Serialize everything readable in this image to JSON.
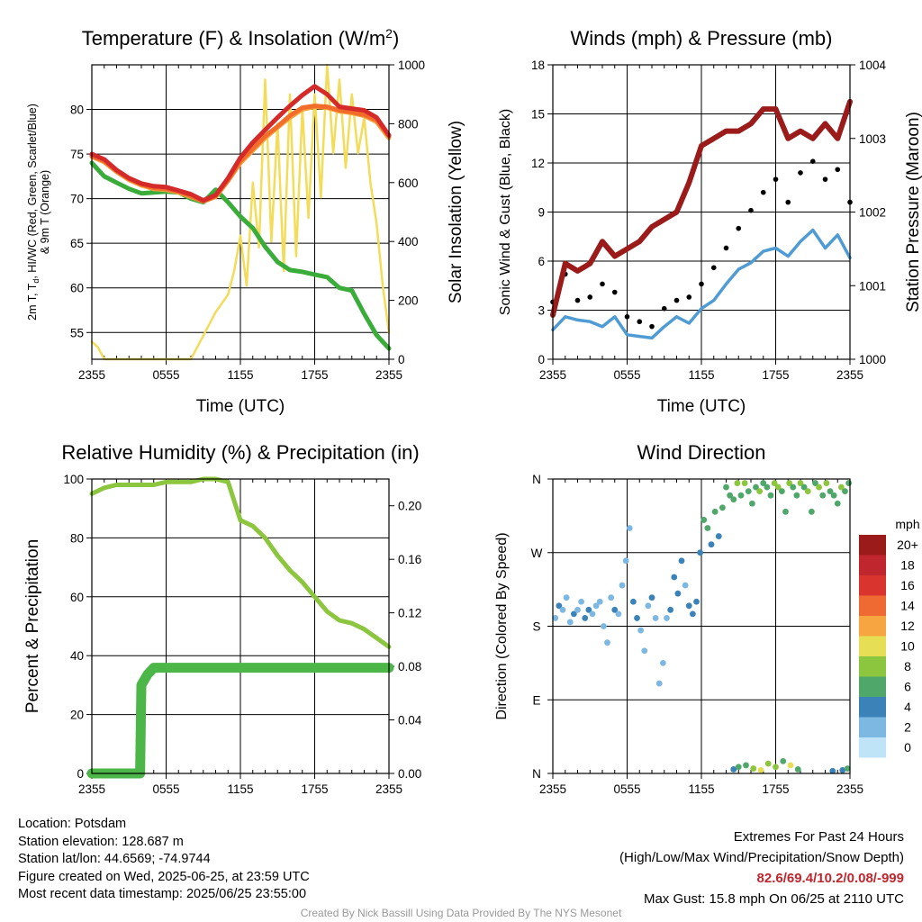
{
  "chart_data": [
    {
      "type": "line",
      "title": "Temperature (F) & Insolation (W/m²)",
      "xlabel": "Time (UTC)",
      "ylabel": "2m T, Td, HI/WC (Red, Green, Scarlet/Blue) & 9m T (Orange)",
      "y2label": "Solar Insolation (Yellow)",
      "xticks": [
        "2355",
        "0555",
        "1155",
        "1755",
        "2355"
      ],
      "ylim": [
        52,
        85
      ],
      "yticks": [
        55,
        60,
        65,
        70,
        75,
        80
      ],
      "y2lim": [
        0,
        1000
      ],
      "y2ticks": [
        0,
        200,
        400,
        600,
        800,
        1000
      ],
      "grid": true,
      "series": [
        {
          "name": "2m T",
          "color": "#d42a2a",
          "x": [
            0,
            1,
            2,
            3,
            4,
            5,
            6,
            7,
            8,
            9,
            10,
            11,
            12,
            13,
            14,
            15,
            16,
            17,
            18,
            19,
            20,
            21,
            22,
            23,
            24
          ],
          "values": [
            75,
            74.4,
            73.2,
            72.3,
            71.7,
            71.4,
            71.3,
            70.9,
            70.5,
            69.8,
            70.4,
            72.3,
            74.6,
            76.3,
            77.7,
            79.1,
            80.4,
            81.6,
            82.6,
            81.7,
            80.3,
            80.1,
            79.9,
            79.1,
            77.1
          ]
        },
        {
          "name": "2m Td",
          "color": "#3aac3a",
          "x": [
            0,
            1,
            2,
            3,
            4,
            5,
            6,
            7,
            8,
            9,
            10,
            11,
            12,
            13,
            14,
            15,
            16,
            17,
            18,
            19,
            20,
            21,
            22,
            23,
            24
          ],
          "values": [
            74,
            72.5,
            71.8,
            71.1,
            70.6,
            70.7,
            70.8,
            70.7,
            70.0,
            69.6,
            71.0,
            69.6,
            68.0,
            66.7,
            64.6,
            62.9,
            62.0,
            61.8,
            61.5,
            61.2,
            60.0,
            59.7,
            57.1,
            54.7,
            53.2
          ]
        },
        {
          "name": "HI/WC",
          "color": "#f26c2a",
          "x": [
            0,
            1,
            2,
            3,
            4,
            5,
            6,
            7,
            8,
            9,
            10,
            11,
            12,
            13,
            14,
            15,
            16,
            17,
            18,
            19,
            20,
            21,
            22,
            23,
            24
          ],
          "values": [
            74.8,
            74.2,
            73.1,
            72.2,
            71.6,
            71.2,
            71.1,
            70.8,
            70.3,
            69.7,
            70.3,
            72.1,
            74.2,
            75.6,
            77.0,
            78.1,
            79.3,
            80.2,
            80.4,
            80.3,
            79.9,
            79.7,
            79.4,
            78.8,
            77.0
          ]
        },
        {
          "name": "9m T",
          "color": "#f7a541",
          "x": [
            0,
            1,
            2,
            3,
            4,
            5,
            6,
            7,
            8,
            9,
            10,
            11,
            12,
            13,
            14,
            15,
            16,
            17,
            18,
            19,
            20,
            21,
            22,
            23,
            24
          ],
          "values": [
            74.7,
            74.1,
            73.0,
            72.1,
            71.5,
            71.1,
            71.0,
            70.7,
            70.2,
            69.7,
            70.2,
            72.0,
            74.0,
            75.4,
            76.8,
            78.0,
            79.1,
            80.0,
            80.3,
            80.2,
            79.8,
            79.6,
            79.3,
            78.6,
            76.8
          ]
        },
        {
          "name": "Solar Insolation",
          "color": "#f2dc5a",
          "axis": "y2",
          "x": [
            0,
            0.5,
            1,
            2,
            3,
            4,
            5,
            6,
            7,
            8,
            9,
            10,
            11,
            11.5,
            12,
            12.5,
            13,
            13.5,
            14,
            14.5,
            15,
            15.5,
            16,
            16.5,
            17,
            17.5,
            18,
            18.5,
            19,
            19.5,
            20,
            20.5,
            21,
            21.5,
            22,
            22.5,
            23,
            23.5,
            24
          ],
          "values": [
            60,
            40,
            0,
            0,
            0,
            0,
            0,
            0,
            0,
            0,
            80,
            160,
            220,
            300,
            420,
            250,
            600,
            380,
            950,
            400,
            800,
            300,
            900,
            350,
            850,
            480,
            900,
            550,
            1000,
            700,
            950,
            650,
            900,
            700,
            820,
            600,
            460,
            250,
            90
          ]
        }
      ]
    },
    {
      "type": "line",
      "title": "Winds (mph) & Pressure (mb)",
      "xlabel": "Time (UTC)",
      "ylabel": "Sonic Wind & Gust (Blue, Black)",
      "y2label": "Station Pressure (Maroon)",
      "xticks": [
        "2355",
        "0555",
        "1155",
        "1755",
        "2355"
      ],
      "ylim": [
        0,
        18
      ],
      "yticks": [
        0,
        3,
        6,
        9,
        12,
        15,
        18
      ],
      "y2lim": [
        1000,
        1004
      ],
      "y2ticks": [
        1000,
        1001,
        1002,
        1003,
        1004
      ],
      "grid": true,
      "series": [
        {
          "name": "Sonic Wind",
          "color": "#4f9bd4",
          "x": [
            0,
            1,
            2,
            3,
            4,
            5,
            6,
            7,
            8,
            9,
            10,
            11,
            12,
            13,
            14,
            15,
            16,
            17,
            18,
            19,
            20,
            21,
            22,
            23,
            24
          ],
          "values": [
            1.8,
            2.6,
            2.4,
            2.3,
            2.0,
            2.6,
            1.5,
            1.4,
            1.3,
            2.0,
            2.6,
            2.2,
            3.1,
            3.6,
            4.6,
            5.5,
            5.9,
            6.6,
            6.8,
            6.3,
            7.2,
            7.9,
            6.8,
            7.6,
            6.2
          ]
        },
        {
          "name": "Gust",
          "color": "#000000",
          "style": "points",
          "x": [
            0,
            1,
            2,
            3,
            4,
            5,
            6,
            7,
            8,
            9,
            10,
            11,
            12,
            13,
            14,
            15,
            16,
            17,
            18,
            19,
            20,
            21,
            22,
            23,
            24
          ],
          "values": [
            3.5,
            5.2,
            3.6,
            3.8,
            4.6,
            4.1,
            2.6,
            2.3,
            2.0,
            3.1,
            3.6,
            3.8,
            4.6,
            5.6,
            6.8,
            8.0,
            9.1,
            10.2,
            11.0,
            9.6,
            11.4,
            12.1,
            11.0,
            11.6,
            9.6
          ]
        },
        {
          "name": "Station Pressure",
          "color": "#9b1b1b",
          "axis": "y2",
          "x": [
            0,
            1,
            2,
            3,
            4,
            5,
            6,
            7,
            8,
            9,
            10,
            11,
            12,
            13,
            14,
            15,
            16,
            17,
            18,
            19,
            20,
            21,
            22,
            23,
            24
          ],
          "values": [
            1000.6,
            1001.3,
            1001.2,
            1001.3,
            1001.6,
            1001.4,
            1001.5,
            1001.6,
            1001.8,
            1001.9,
            1002.0,
            1002.4,
            1002.9,
            1003.0,
            1003.1,
            1003.1,
            1003.2,
            1003.4,
            1003.4,
            1003.0,
            1003.1,
            1003.0,
            1003.2,
            1003.0,
            1003.5
          ]
        }
      ]
    },
    {
      "type": "line",
      "title": "Relative Humidity (%) & Precipitation (in)",
      "xlabel": "",
      "ylabel": "Percent & Precipitation",
      "xticks": [
        "2355",
        "0555",
        "1155",
        "1755",
        "2355"
      ],
      "ylim": [
        0,
        100
      ],
      "yticks": [
        0,
        20,
        40,
        60,
        80,
        100
      ],
      "y2lim": [
        0,
        0.22
      ],
      "y2ticks": [
        0.0,
        0.04,
        0.08,
        0.12,
        0.16,
        0.2
      ],
      "grid": true,
      "series": [
        {
          "name": "Relative Humidity",
          "color": "#8cc63f",
          "x": [
            0,
            1,
            2,
            3,
            4,
            5,
            6,
            7,
            8,
            9,
            10,
            11,
            12,
            13,
            14,
            15,
            16,
            17,
            18,
            19,
            20,
            21,
            22,
            23,
            24
          ],
          "values": [
            95,
            97,
            98,
            98,
            98,
            98,
            99,
            99,
            99,
            100,
            100,
            99,
            86,
            84,
            80,
            74,
            69,
            65,
            60,
            55,
            52,
            51,
            49,
            46,
            43
          ]
        },
        {
          "name": "Precipitation",
          "color": "#4cb648",
          "axis": "y2",
          "x": [
            0,
            1,
            2,
            3,
            3.9,
            4.0,
            4.5,
            5,
            6,
            7,
            8,
            9,
            10,
            11,
            12,
            13,
            14,
            15,
            16,
            17,
            18,
            19,
            20,
            21,
            22,
            23,
            24
          ],
          "values": [
            0,
            0,
            0,
            0,
            0,
            0.066,
            0.074,
            0.079,
            0.079,
            0.079,
            0.079,
            0.079,
            0.079,
            0.079,
            0.079,
            0.079,
            0.079,
            0.079,
            0.079,
            0.079,
            0.079,
            0.079,
            0.079,
            0.079,
            0.079,
            0.079,
            0.079
          ]
        }
      ]
    },
    {
      "type": "scatter",
      "title": "Wind Direction",
      "xlabel": "",
      "ylabel": "Direction (Colored By Speed)",
      "xticks": [
        "2355",
        "0555",
        "1155",
        "1755",
        "2355"
      ],
      "yticks": [
        "N",
        "E",
        "S",
        "W",
        "N"
      ],
      "ylim": [
        0,
        360
      ],
      "grid": true,
      "colorbar": {
        "unit": "mph",
        "labels": [
          "20+",
          "18",
          "16",
          "14",
          "12",
          "10",
          "8",
          "6",
          "4",
          "2",
          "0"
        ],
        "colors": [
          "#9b1b1b",
          "#c0262d",
          "#d9352e",
          "#ef6a32",
          "#f7a541",
          "#e6de55",
          "#8cc63f",
          "#4fa86a",
          "#3b82b8",
          "#7cb8e2",
          "#bfe3f7"
        ]
      },
      "x": [
        0.2,
        0.5,
        0.8,
        1.1,
        1.4,
        1.7,
        2.0,
        2.3,
        2.6,
        2.9,
        3.2,
        3.5,
        3.8,
        4.1,
        4.4,
        4.7,
        5.0,
        5.3,
        5.6,
        5.9,
        6.2,
        6.5,
        6.8,
        7.1,
        7.4,
        7.7,
        8.0,
        8.3,
        8.6,
        8.9,
        9.2,
        9.5,
        9.8,
        10.1,
        10.4,
        10.7,
        11.0,
        11.3,
        11.6,
        11.9,
        12.2,
        12.5,
        12.8,
        13.1,
        13.4,
        13.7,
        14.0,
        14.3,
        14.6,
        14.9,
        15.2,
        15.5,
        15.8,
        16.1,
        16.4,
        16.7,
        17.0,
        17.3,
        17.6,
        17.9,
        18.2,
        18.5,
        18.8,
        19.1,
        19.4,
        19.7,
        20.0,
        20.3,
        20.6,
        20.9,
        21.2,
        21.5,
        21.8,
        22.1,
        22.4,
        22.7,
        23.0,
        23.3,
        23.6,
        23.9,
        14.6,
        15.0,
        15.6,
        16.2,
        16.8,
        17.4,
        18.0,
        18.6,
        19.2,
        19.8,
        22.6,
        23.4,
        23.8
      ],
      "y": [
        190,
        205,
        200,
        215,
        185,
        195,
        200,
        210,
        190,
        200,
        195,
        205,
        210,
        180,
        160,
        215,
        200,
        195,
        230,
        260,
        300,
        210,
        190,
        175,
        150,
        205,
        215,
        190,
        110,
        135,
        190,
        200,
        240,
        220,
        260,
        230,
        205,
        195,
        210,
        270,
        310,
        300,
        280,
        320,
        290,
        325,
        350,
        340,
        335,
        355,
        340,
        355,
        345,
        330,
        350,
        345,
        355,
        350,
        340,
        355,
        350,
        345,
        320,
        355,
        350,
        340,
        355,
        350,
        345,
        320,
        355,
        350,
        340,
        355,
        345,
        340,
        330,
        350,
        345,
        355,
        5,
        8,
        10,
        6,
        4,
        12,
        8,
        15,
        10,
        5,
        3,
        4,
        6
      ],
      "speeds": [
        2,
        3,
        2,
        1,
        2,
        3,
        2,
        2,
        3,
        4,
        2,
        1,
        2,
        1,
        1,
        2,
        3,
        2,
        2,
        1,
        2,
        3,
        4,
        2,
        1,
        2,
        3,
        2,
        1,
        1,
        2,
        3,
        4,
        4,
        3,
        2,
        3,
        4,
        3,
        4,
        5,
        5,
        4,
        5,
        4,
        5,
        6,
        6,
        6,
        7,
        6,
        7,
        6,
        5,
        6,
        7,
        6,
        6,
        5,
        7,
        8,
        6,
        5,
        7,
        6,
        6,
        7,
        6,
        8,
        5,
        6,
        7,
        6,
        7,
        6,
        5,
        6,
        7,
        6,
        5,
        4,
        6,
        5,
        7,
        9,
        8,
        7,
        6,
        10,
        5,
        3,
        4,
        5
      ]
    }
  ],
  "footer": {
    "location": "Location: Potsdam",
    "elevation": "Station elevation: 128.687 m",
    "latlon": "Station lat/lon: 44.6569; -74.9744",
    "created": "Figure created on Wed, 2025-06-25, at 23:59 UTC",
    "recent": "Most recent data timestamp: 2025/06/25 23:55:00",
    "extremes_title": "Extremes For Past 24 Hours",
    "extremes_desc": "(High/Low/Max Wind/Precipitation/Snow Depth)",
    "extremes_values": "82.6/69.4/10.2/0.08/-999",
    "max_gust": "Max Gust: 15.8 mph On 06/25 at 2110 UTC",
    "credit": "Created By Nick Bassill Using Data Provided By The NYS Mesonet"
  }
}
